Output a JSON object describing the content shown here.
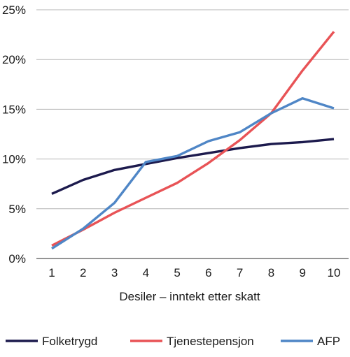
{
  "chart_data": {
    "type": "line",
    "title": "",
    "xlabel": "Desiler – inntekt etter skatt",
    "ylabel": "",
    "categories": [
      "1",
      "2",
      "3",
      "4",
      "5",
      "6",
      "7",
      "8",
      "9",
      "10"
    ],
    "yticks": [
      "0%",
      "5%",
      "10%",
      "15%",
      "20%",
      "25%"
    ],
    "ylim": [
      0,
      25
    ],
    "grid": "horizontal",
    "legend_position": "bottom",
    "series": [
      {
        "name": "Folketrygd",
        "color": "#1c1a4d",
        "values": [
          6.5,
          7.9,
          8.9,
          9.5,
          10.1,
          10.6,
          11.1,
          11.5,
          11.7,
          12.0
        ]
      },
      {
        "name": "Tjenestepensjon",
        "color": "#e85356",
        "values": [
          1.3,
          2.9,
          4.6,
          6.1,
          7.6,
          9.6,
          11.9,
          14.6,
          18.9,
          22.8
        ]
      },
      {
        "name": "AFP",
        "color": "#4f86c6",
        "values": [
          1.0,
          3.0,
          5.6,
          9.7,
          10.3,
          11.8,
          12.7,
          14.6,
          16.1,
          15.1
        ]
      }
    ]
  }
}
